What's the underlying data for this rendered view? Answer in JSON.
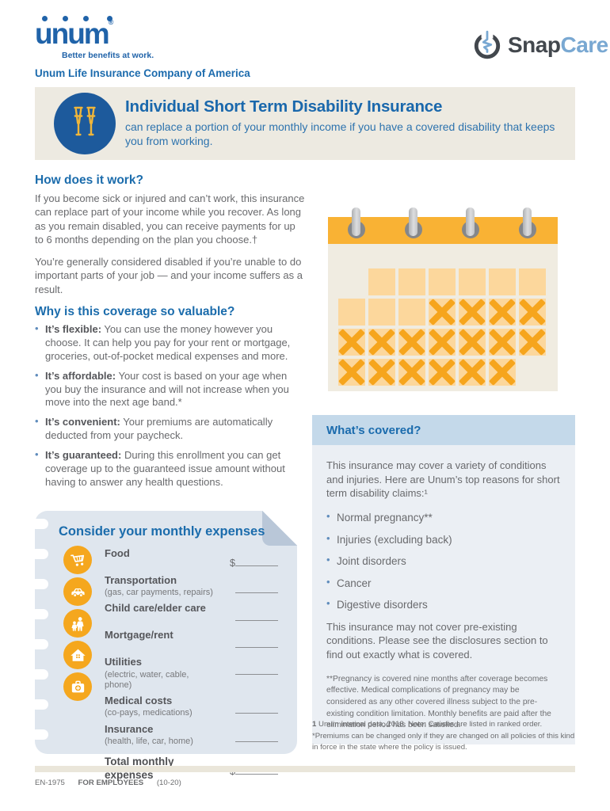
{
  "brand": {
    "unum_logo": "unum",
    "unum_reg": "®",
    "unum_tagline": "Better benefits at work.",
    "company_line": "Unum Life Insurance Company of America",
    "snapcare_snap": "Snap",
    "snapcare_care": "Care"
  },
  "banner": {
    "title": "Individual Short Term Disability Insurance",
    "subtitle": "can replace a portion of your monthly income if you have a covered disability that keeps you from working."
  },
  "how_it_works": {
    "heading": "How does it work?",
    "para1": "If you become sick or injured and can’t work, this insurance can replace part of your income while you recover. As long as you remain disabled, you can receive payments for up to 6 months depending on the plan you choose.†",
    "para2": "You’re generally considered disabled if you’re unable to do important parts of your job — and your income suffers as a result."
  },
  "why_valuable": {
    "heading": "Why is this coverage so valuable?",
    "bullets": [
      {
        "lead": "It’s flexible:",
        "text": "You can use the money however you choose. It can help you pay for your rent or mortgage, groceries, out-of-pocket medical expenses and more."
      },
      {
        "lead": "It’s affordable:",
        "text": "Your cost is based on your age when you buy the insurance and will not increase when you move into the next age band.*"
      },
      {
        "lead": "It’s convenient:",
        "text": "Your premiums are automatically deducted from your paycheck."
      },
      {
        "lead": "It’s guaranteed:",
        "text": "During this enrollment you can get coverage up to the guaranteed issue amount without having to answer any health questions."
      }
    ]
  },
  "calendar": {
    "pattern": [
      "0111111",
      "1112222",
      "2222222",
      "2222220"
    ]
  },
  "whats_covered": {
    "heading": "What’s covered?",
    "intro": "This insurance may cover a variety of conditions and injuries. Here are Unum’s top reasons for short term disability claims:¹",
    "bullets": [
      "Normal pregnancy**",
      "Injuries (excluding back)",
      "Joint disorders",
      "Cancer",
      "Digestive disorders"
    ],
    "outro": "This insurance may not cover pre-existing conditions. Please see the disclosures section to find out exactly what is covered.",
    "footnote": "**Pregnancy is covered nine months after coverage becomes effective. Medical complications of pregnancy may be considered as any other covered illness subject to the pre-existing condition limitation. Monthly benefits are paid after the elimination period has been satisfied."
  },
  "footnotes": {
    "note1_lead": "1",
    "note1_text": "Unum internal data, 2018. Note: Causes are listed in ranked order.",
    "note2_text": "*Premiums can be changed only if they are changed on all policies of this kind in force in the state where the policy is issued."
  },
  "expenses": {
    "heading": "Consider your monthly expenses",
    "icons": [
      "cart-icon",
      "car-icon",
      "family-icon",
      "house-icon",
      "firstaid-icon"
    ],
    "rows": [
      {
        "label": "Food",
        "sub": "",
        "prefix": "$",
        "total": false
      },
      {
        "label": "Transportation",
        "sub": "(gas, car payments, repairs)",
        "prefix": "",
        "total": false
      },
      {
        "label": "Child care/elder care",
        "sub": "",
        "prefix": "",
        "total": false
      },
      {
        "label": "Mortgage/rent",
        "sub": "",
        "prefix": "",
        "total": false
      },
      {
        "label": "Utilities",
        "sub": "(electric, water, cable, phone)",
        "prefix": "",
        "total": false
      },
      {
        "label": "Medical costs",
        "sub": "(co-pays, medications)",
        "prefix": "",
        "total": false
      },
      {
        "label": "Insurance",
        "sub": "(health, life, car, home)",
        "prefix": "",
        "total": false
      },
      {
        "label": "Total monthly expenses",
        "sub": "",
        "prefix": "$",
        "total": true
      }
    ]
  },
  "footer": {
    "form_number": "EN-1975",
    "audience": "FOR EMPLOYEES",
    "date_code": "(10-20)"
  },
  "colors": {
    "unum_blue": "#2063a9",
    "heading_blue": "#1b6cac",
    "body_gray": "#696a6d",
    "banner_beige": "#edeae1",
    "calendar_orange": "#f9b234",
    "icon_orange": "#f5a71e",
    "covered_band_blue": "#c4d9ea",
    "expense_box_blue": "#dfe6ee"
  }
}
